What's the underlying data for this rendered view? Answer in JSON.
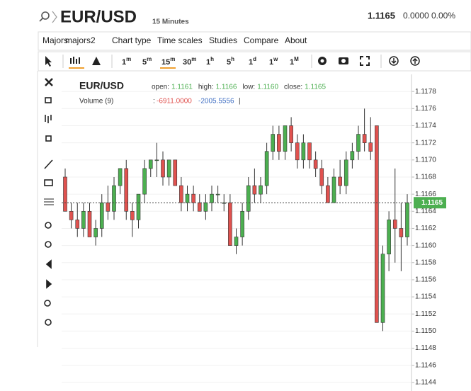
{
  "header": {
    "symbol": "EUR/USD",
    "interval": "15 Minutes",
    "price": "1.1165",
    "change": "0.0000 0.00%"
  },
  "menu": [
    "Majors",
    "majors2",
    "Chart type",
    "Time scales",
    "Studies",
    "Compare",
    "About"
  ],
  "timescales": [
    {
      "num": "1",
      "unit": "m"
    },
    {
      "num": "5",
      "unit": "m"
    },
    {
      "num": "15",
      "unit": "m"
    },
    {
      "num": "30",
      "unit": "m"
    },
    {
      "num": "1",
      "unit": "h"
    },
    {
      "num": "5",
      "unit": "h"
    },
    {
      "num": "1",
      "unit": "d"
    },
    {
      "num": "1",
      "unit": "w"
    },
    {
      "num": "1",
      "unit": "M"
    }
  ],
  "chart_data": {
    "type": "candlestick",
    "title": "EUR/USD",
    "legend": {
      "items": [
        {
          "label": "open:",
          "value": "1.1161"
        },
        {
          "label": "high:",
          "value": "1.1166"
        },
        {
          "label": "low:",
          "value": "1.1160"
        },
        {
          "label": "close:",
          "value": "1.1165"
        }
      ],
      "volume": "Volume (9)",
      "sep": ":",
      "v1": "-6911.0000",
      "v2": "-2005.5556",
      "end": "|"
    },
    "up_color": "#4caf50",
    "down_color": "#e0524f",
    "grid": true,
    "ylim": [
      1.1143,
      1.118
    ],
    "yticks": [
      1.1144,
      1.1146,
      1.1148,
      {
        "value": 1.115,
        "label": "1.1150"
      },
      1.1152,
      1.1154,
      1.1156,
      1.1158,
      {
        "value": 1.116,
        "label": "1.1160"
      },
      1.1162,
      1.1164,
      1.1166,
      1.1168,
      {
        "value": 1.117,
        "label": "1.1170"
      },
      1.1172,
      1.1174,
      1.1176,
      1.1178
    ],
    "last_price": 1.1165,
    "ohlc": [
      [
        1.1168,
        1.1169,
        1.1164,
        1.1164
      ],
      [
        1.1164,
        1.1165,
        1.1162,
        1.1163
      ],
      [
        1.1163,
        1.1165,
        1.1161,
        1.1162
      ],
      [
        1.1162,
        1.1165,
        1.1161,
        1.1164
      ],
      [
        1.1164,
        1.1165,
        1.1161,
        1.1161
      ],
      [
        1.1161,
        1.1163,
        1.116,
        1.1162
      ],
      [
        1.1162,
        1.1166,
        1.1161,
        1.1165
      ],
      [
        1.1165,
        1.1167,
        1.1163,
        1.1164
      ],
      [
        1.1164,
        1.1168,
        1.1163,
        1.1167
      ],
      [
        1.1167,
        1.1169,
        1.1166,
        1.1169
      ],
      [
        1.1169,
        1.117,
        1.1163,
        1.1164
      ],
      [
        1.1164,
        1.1165,
        1.1161,
        1.1163
      ],
      [
        1.1163,
        1.1166,
        1.1162,
        1.1166
      ],
      [
        1.1166,
        1.117,
        1.1165,
        1.1169
      ],
      [
        1.1169,
        1.117,
        1.1168,
        1.117
      ],
      [
        1.117,
        1.1172,
        1.1168,
        1.117
      ],
      [
        1.117,
        1.1171,
        1.1167,
        1.1168
      ],
      [
        1.1168,
        1.117,
        1.1167,
        1.117
      ],
      [
        1.117,
        1.117,
        1.1167,
        1.1167
      ],
      [
        1.1167,
        1.1168,
        1.1164,
        1.1165
      ],
      [
        1.1165,
        1.1167,
        1.1164,
        1.1166
      ],
      [
        1.1166,
        1.1167,
        1.1164,
        1.1165
      ],
      [
        1.1165,
        1.1166,
        1.1164,
        1.1164
      ],
      [
        1.1164,
        1.1166,
        1.1163,
        1.1165
      ],
      [
        1.1165,
        1.1167,
        1.1164,
        1.1166
      ],
      [
        1.1166,
        1.1167,
        1.1165,
        1.1166
      ],
      [
        1.1165,
        1.1166,
        1.1164,
        1.1165
      ],
      [
        1.1165,
        1.1166,
        1.116,
        1.116
      ],
      [
        1.116,
        1.1162,
        1.1159,
        1.1161
      ],
      [
        1.1161,
        1.1165,
        1.116,
        1.1164
      ],
      [
        1.1164,
        1.1168,
        1.1163,
        1.1167
      ],
      [
        1.1167,
        1.1169,
        1.1165,
        1.1166
      ],
      [
        1.1166,
        1.1168,
        1.1165,
        1.1167
      ],
      [
        1.1167,
        1.1172,
        1.1166,
        1.1171
      ],
      [
        1.1171,
        1.1174,
        1.117,
        1.1173
      ],
      [
        1.1173,
        1.1174,
        1.117,
        1.1171
      ],
      [
        1.1171,
        1.1174,
        1.117,
        1.1174
      ],
      [
        1.1174,
        1.1175,
        1.1171,
        1.1172
      ],
      [
        1.1172,
        1.1173,
        1.1169,
        1.117
      ],
      [
        1.117,
        1.1173,
        1.1169,
        1.1172
      ],
      [
        1.1172,
        1.1172,
        1.1169,
        1.117
      ],
      [
        1.117,
        1.1171,
        1.1168,
        1.1169
      ],
      [
        1.1169,
        1.117,
        1.1166,
        1.1167
      ],
      [
        1.1167,
        1.1168,
        1.1165,
        1.1165
      ],
      [
        1.1165,
        1.1169,
        1.1165,
        1.1168
      ],
      [
        1.1168,
        1.117,
        1.1166,
        1.1167
      ],
      [
        1.1167,
        1.1171,
        1.1166,
        1.117
      ],
      [
        1.117,
        1.1172,
        1.1169,
        1.1171
      ],
      [
        1.1171,
        1.1174,
        1.117,
        1.1173
      ],
      [
        1.1173,
        1.1176,
        1.1171,
        1.1172
      ],
      [
        1.1172,
        1.1175,
        1.117,
        1.1171
      ],
      [
        1.1174,
        1.1174,
        1.1151,
        1.1151
      ],
      [
        1.1151,
        1.116,
        1.115,
        1.1159
      ],
      [
        1.1159,
        1.1164,
        1.1157,
        1.1163
      ],
      [
        1.1163,
        1.1169,
        1.1158,
        1.1162
      ],
      [
        1.1162,
        1.1165,
        1.1157,
        1.1161
      ],
      [
        1.1161,
        1.1166,
        1.116,
        1.1165
      ]
    ]
  }
}
